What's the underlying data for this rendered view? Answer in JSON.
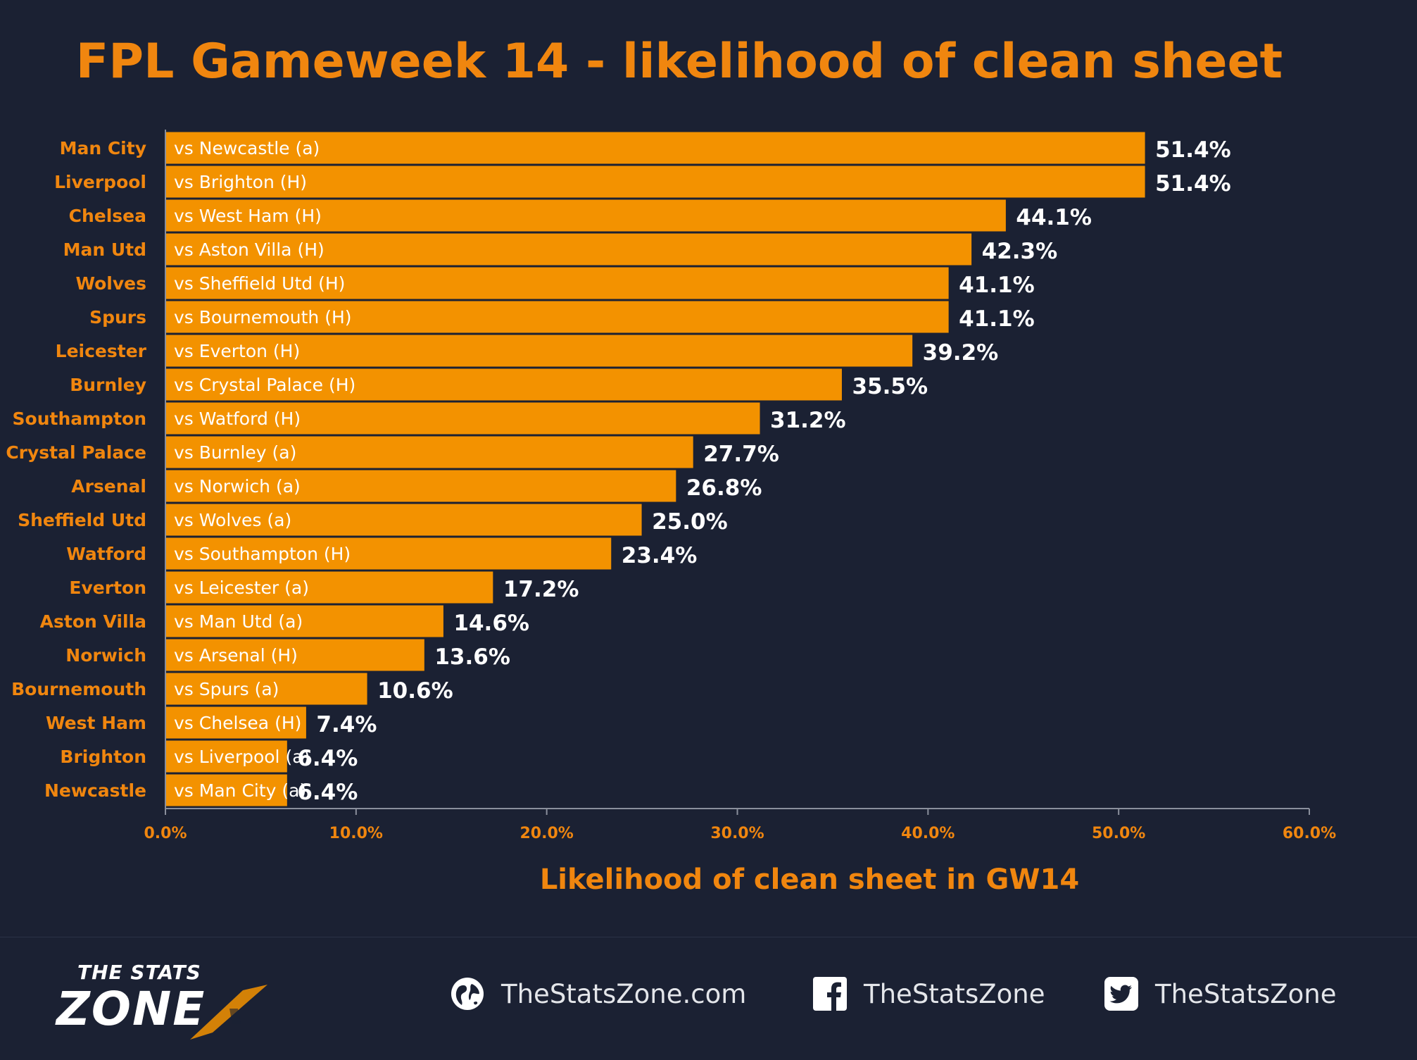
{
  "title": "FPL Gameweek 14 - likelihood of clean sheet",
  "chart_data": {
    "type": "bar",
    "orientation": "horizontal",
    "title": "FPL Gameweek 14 - likelihood of clean sheet",
    "xlabel": "Likelihood of clean sheet in GW14",
    "ylabel": "",
    "xlim": [
      0,
      60
    ],
    "x_ticks": [
      "0.0%",
      "10.0%",
      "20.0%",
      "30.0%",
      "40.0%",
      "50.0%",
      "60.0%"
    ],
    "grid": false,
    "bar_color": "#f39200",
    "categories": [
      "Man City",
      "Liverpool",
      "Chelsea",
      "Man Utd",
      "Wolves",
      "Spurs",
      "Leicester",
      "Burnley",
      "Southampton",
      "Crystal Palace",
      "Arsenal",
      "Sheffield Utd",
      "Watford",
      "Everton",
      "Aston Villa",
      "Norwich",
      "Bournemouth",
      "West Ham",
      "Brighton",
      "Newcastle"
    ],
    "fixtures": [
      "vs Newcastle (a)",
      "vs Brighton (H)",
      "vs West Ham (H)",
      "vs Aston Villa (H)",
      "vs Sheffield Utd (H)",
      "vs Bournemouth (H)",
      "vs Everton (H)",
      "vs Crystal Palace (H)",
      "vs Watford (H)",
      "vs Burnley (a)",
      "vs Norwich (a)",
      "vs Wolves (a)",
      "vs Southampton (H)",
      "vs Leicester (a)",
      "vs Man Utd (a)",
      "vs Arsenal (H)",
      "vs Spurs (a)",
      "vs Chelsea (H)",
      "vs Liverpool (a)",
      "vs Man City (a)"
    ],
    "values": [
      51.4,
      51.4,
      44.1,
      42.3,
      41.1,
      41.1,
      39.2,
      35.5,
      31.2,
      27.7,
      26.8,
      25.0,
      23.4,
      17.2,
      14.6,
      13.6,
      10.6,
      7.4,
      6.4,
      6.4
    ],
    "value_labels": [
      "51.4%",
      "51.4%",
      "44.1%",
      "42.3%",
      "41.1%",
      "41.1%",
      "39.2%",
      "35.5%",
      "31.2%",
      "27.7%",
      "26.8%",
      "25.0%",
      "23.4%",
      "17.2%",
      "14.6%",
      "13.6%",
      "10.6%",
      "7.4%",
      "6.4%",
      "6.4%"
    ]
  },
  "footer": {
    "brand_top": "THE STATS",
    "brand_bottom": "ZONE",
    "website": "TheStatsZone.com",
    "facebook": "TheStatsZone",
    "twitter": "TheStatsZone",
    "icons": [
      "globe-icon",
      "facebook-icon",
      "twitter-icon"
    ]
  },
  "colors": {
    "background": "#1b2133",
    "accent": "#f0860f",
    "bar": "#f39200",
    "text": "#ffffff"
  }
}
